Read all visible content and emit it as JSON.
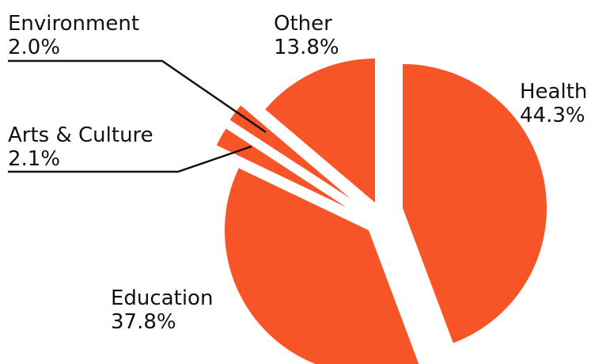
{
  "chart_data": {
    "type": "pie",
    "categories": [
      "Health",
      "Education",
      "Arts & Culture",
      "Environment",
      "Other"
    ],
    "values": [
      44.3,
      37.8,
      2.1,
      2.0,
      13.8
    ],
    "value_labels": [
      "44.3%",
      "37.8%",
      "2.1%",
      "2.0%",
      "13.8%"
    ],
    "slice_color": "#F75528",
    "title": "",
    "legend": "none"
  }
}
